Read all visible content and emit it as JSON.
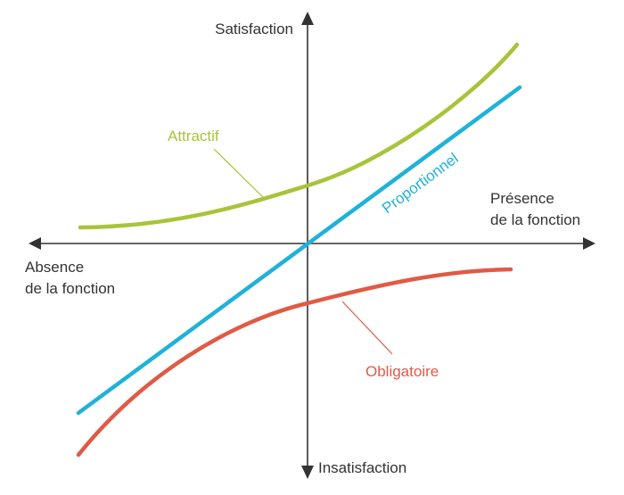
{
  "axes": {
    "y_top_label": "Satisfaction",
    "y_bottom_label": "Insatisfaction",
    "x_right_label": [
      "Présence",
      "de la fonction"
    ],
    "x_left_label": [
      "Absence",
      "de la fonction"
    ],
    "color": "#333333"
  },
  "curves": {
    "attractif": {
      "label": "Attractif",
      "color": "#a7c43a"
    },
    "proportionnel": {
      "label": "Proportionnel",
      "color": "#1fb2d9"
    },
    "obligatoire": {
      "label": "Obligatoire",
      "color": "#e05a45"
    }
  }
}
